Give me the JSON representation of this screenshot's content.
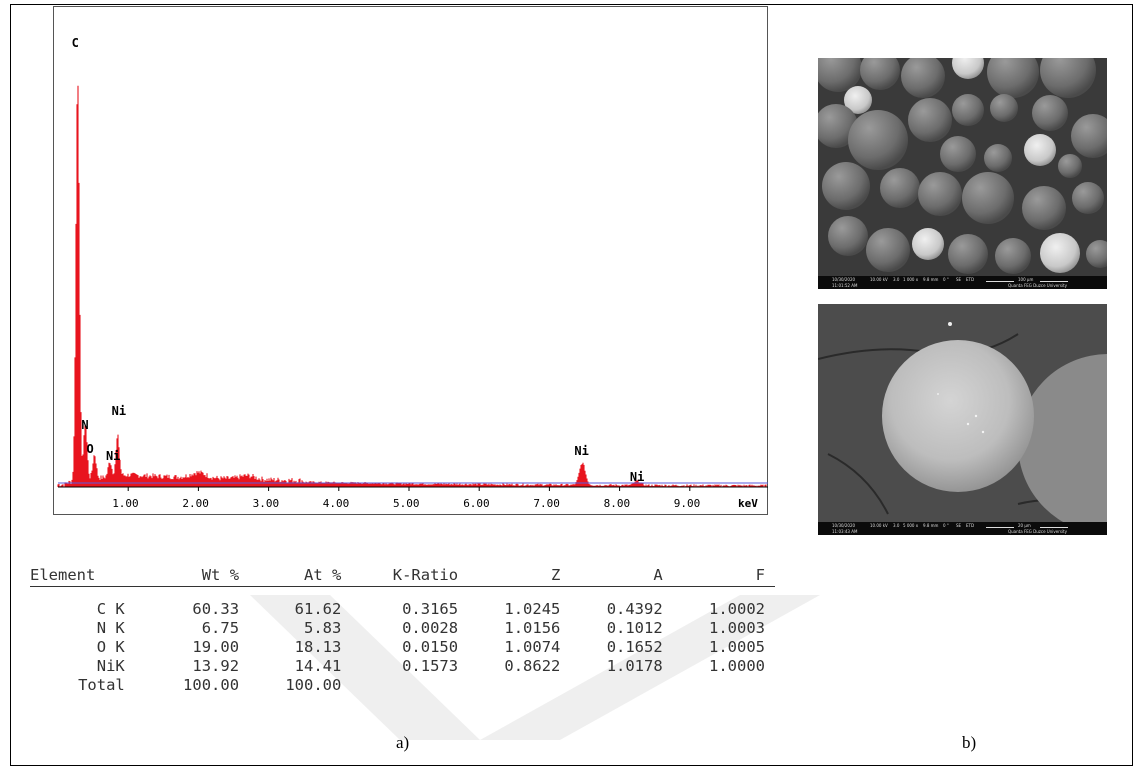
{
  "chart_data": {
    "type": "line",
    "xlabel": "keV",
    "x_ticks": [
      "1.00",
      "2.00",
      "3.00",
      "4.00",
      "5.00",
      "6.00",
      "7.00",
      "8.00",
      "9.00"
    ],
    "xlim": [
      0,
      10.0
    ],
    "ylim": [
      0,
      1.0
    ],
    "peaks": [
      {
        "label": "C",
        "energy": 0.28,
        "intensity": 0.92
      },
      {
        "label": "N",
        "energy": 0.39,
        "intensity": 0.13
      },
      {
        "label": "O",
        "energy": 0.52,
        "intensity": 0.055
      },
      {
        "label": "Ni",
        "energy": 0.85,
        "intensity": 0.09
      },
      {
        "label": "Ni",
        "energy": 0.74,
        "intensity": 0.035
      },
      {
        "label": "Ni",
        "energy": 7.47,
        "intensity": 0.05
      },
      {
        "label": "Ni",
        "energy": 8.26,
        "intensity": 0.01
      }
    ],
    "series_color": "#e8141e",
    "baseline_color": "#5a5adc"
  },
  "table": {
    "headers": [
      "Element",
      "Wt %",
      "At %",
      "K-Ratio",
      "Z",
      "A",
      "F"
    ],
    "rows": [
      [
        "C K",
        "60.33",
        "61.62",
        "0.3165",
        "1.0245",
        "0.4392",
        "1.0002"
      ],
      [
        "N K",
        "6.75",
        "5.83",
        "0.0028",
        "1.0156",
        "0.1012",
        "1.0003"
      ],
      [
        "O K",
        "19.00",
        "18.13",
        "0.0150",
        "1.0074",
        "0.1652",
        "1.0005"
      ],
      [
        "NiK",
        "13.92",
        "14.41",
        "0.1573",
        "0.8622",
        "1.0178",
        "1.0000"
      ]
    ],
    "total": [
      "Total",
      "100.00",
      "100.00"
    ]
  },
  "labels": {
    "a": "a)",
    "b": "b)"
  },
  "sem_top": {
    "date": "10/30/2020",
    "time": "11:01:52 AM",
    "hv": "10.00 kV",
    "spot": "3.0",
    "mag": "1 000 x",
    "wd": "9.8 mm",
    "tilt": "0 °",
    "mode": "SE",
    "det": "ETD",
    "scale": "100 µm",
    "instrument": "Quanta FEG Duzce University"
  },
  "sem_bottom": {
    "date": "10/30/2020",
    "time": "11:03:43 AM",
    "hv": "10.00 kV",
    "spot": "3.0",
    "mag": "5 000 x",
    "wd": "9.8 mm",
    "tilt": "0 °",
    "mode": "SE",
    "det": "ETD",
    "scale": "20 µm",
    "instrument": "Quanta FEG Duzce University"
  }
}
